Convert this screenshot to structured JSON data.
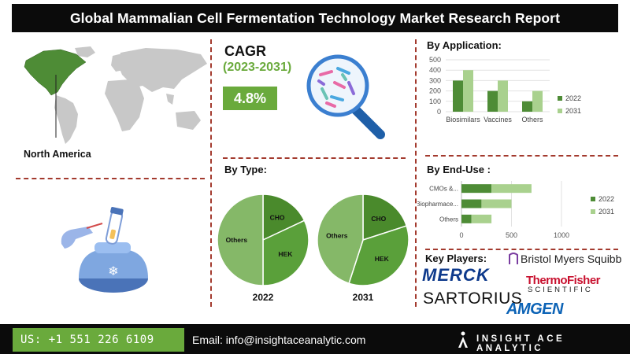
{
  "header": {
    "title": "Global Mammalian Cell Fermentation Technology Market Research Report"
  },
  "region": {
    "label": "North America"
  },
  "cagr": {
    "title": "CAGR",
    "period": "(2023-2031)",
    "value": "4.8%"
  },
  "application": {
    "title": "By Application:"
  },
  "type_section": {
    "title": "By Type:"
  },
  "enduse": {
    "title": "By End-Use :"
  },
  "key_players": {
    "title": "Key Players:",
    "logos": [
      "Bristol Myers Squibb",
      "MERCK",
      "ThermoFisher",
      "SCIENTIFIC",
      "SARTORIUS",
      "AMGEN"
    ]
  },
  "footer": {
    "phone": "US: +1 551 226 6109",
    "email": "Email: info@insightaceanalytic.com",
    "brand": "INSIGHT ACE ANALYTIC"
  },
  "colors": {
    "dark_green": "#4e8c36",
    "light_green": "#a9d18e",
    "accent_green": "#6aaa3c",
    "pie_light": "#85b868",
    "pie_dark": "#4a8a2c",
    "divider": "#a33a2e"
  },
  "chart_data": [
    {
      "type": "bar",
      "title": "By Application:",
      "categories": [
        "Biosimilars",
        "Vaccines",
        "Others"
      ],
      "series": [
        {
          "name": "2022",
          "values": [
            300,
            200,
            100
          ]
        },
        {
          "name": "2031",
          "values": [
            400,
            300,
            200
          ]
        }
      ],
      "ylim": [
        0,
        500
      ],
      "yticks": [
        0,
        100,
        200,
        300,
        400,
        500
      ],
      "legend": "right"
    },
    {
      "type": "bar",
      "orientation": "horizontal",
      "stacked": true,
      "title": "By End-Use :",
      "categories": [
        "CMOs &...",
        "Biopharmace...",
        "Others"
      ],
      "series": [
        {
          "name": "2022",
          "values": [
            300,
            200,
            100
          ]
        },
        {
          "name": "2031",
          "values": [
            400,
            300,
            200
          ]
        }
      ],
      "xlim": [
        0,
        1000
      ],
      "xticks": [
        0,
        500,
        1000
      ],
      "legend": "right"
    },
    {
      "type": "pie",
      "caption": "2022",
      "slices": [
        {
          "label": "CHO",
          "value": 18
        },
        {
          "label": "HEK",
          "value": 32
        },
        {
          "label": "Others",
          "value": 50
        }
      ]
    },
    {
      "type": "pie",
      "caption": "2031",
      "slices": [
        {
          "label": "CHO",
          "value": 20
        },
        {
          "label": "HEK",
          "value": 35
        },
        {
          "label": "Others",
          "value": 45
        }
      ]
    }
  ]
}
